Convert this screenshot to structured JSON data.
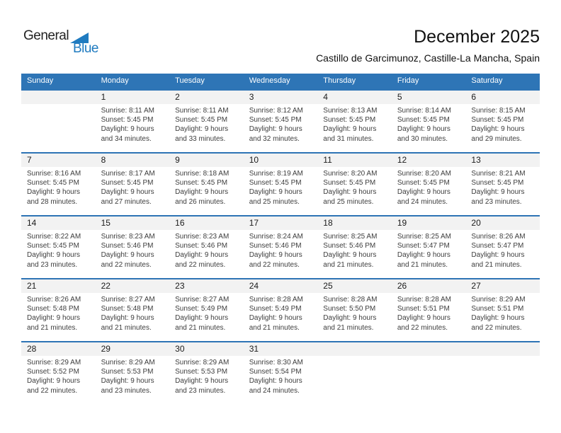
{
  "logo": {
    "part1": "General",
    "part2": "Blue"
  },
  "header": {
    "title": "December 2025",
    "subtitle": "Castillo de Garcimunoz, Castille-La Mancha, Spain"
  },
  "colors": {
    "header_blue": "#2e75b6",
    "divider_blue": "#2e74b5",
    "strip_gray": "#f2f2f2",
    "logo_blue": "#1f7bc0"
  },
  "icons": {
    "logo_flag": "blue-triangle-flag"
  },
  "calendar": {
    "day_headers": [
      "Sunday",
      "Monday",
      "Tuesday",
      "Wednesday",
      "Thursday",
      "Friday",
      "Saturday"
    ],
    "weeks": [
      {
        "days": [
          {
            "date": "",
            "lines": []
          },
          {
            "date": "1",
            "lines": [
              "Sunrise: 8:11 AM",
              "Sunset: 5:45 PM",
              "Daylight: 9 hours",
              "and 34 minutes."
            ]
          },
          {
            "date": "2",
            "lines": [
              "Sunrise: 8:11 AM",
              "Sunset: 5:45 PM",
              "Daylight: 9 hours",
              "and 33 minutes."
            ]
          },
          {
            "date": "3",
            "lines": [
              "Sunrise: 8:12 AM",
              "Sunset: 5:45 PM",
              "Daylight: 9 hours",
              "and 32 minutes."
            ]
          },
          {
            "date": "4",
            "lines": [
              "Sunrise: 8:13 AM",
              "Sunset: 5:45 PM",
              "Daylight: 9 hours",
              "and 31 minutes."
            ]
          },
          {
            "date": "5",
            "lines": [
              "Sunrise: 8:14 AM",
              "Sunset: 5:45 PM",
              "Daylight: 9 hours",
              "and 30 minutes."
            ]
          },
          {
            "date": "6",
            "lines": [
              "Sunrise: 8:15 AM",
              "Sunset: 5:45 PM",
              "Daylight: 9 hours",
              "and 29 minutes."
            ]
          }
        ]
      },
      {
        "days": [
          {
            "date": "7",
            "lines": [
              "Sunrise: 8:16 AM",
              "Sunset: 5:45 PM",
              "Daylight: 9 hours",
              "and 28 minutes."
            ]
          },
          {
            "date": "8",
            "lines": [
              "Sunrise: 8:17 AM",
              "Sunset: 5:45 PM",
              "Daylight: 9 hours",
              "and 27 minutes."
            ]
          },
          {
            "date": "9",
            "lines": [
              "Sunrise: 8:18 AM",
              "Sunset: 5:45 PM",
              "Daylight: 9 hours",
              "and 26 minutes."
            ]
          },
          {
            "date": "10",
            "lines": [
              "Sunrise: 8:19 AM",
              "Sunset: 5:45 PM",
              "Daylight: 9 hours",
              "and 25 minutes."
            ]
          },
          {
            "date": "11",
            "lines": [
              "Sunrise: 8:20 AM",
              "Sunset: 5:45 PM",
              "Daylight: 9 hours",
              "and 25 minutes."
            ]
          },
          {
            "date": "12",
            "lines": [
              "Sunrise: 8:20 AM",
              "Sunset: 5:45 PM",
              "Daylight: 9 hours",
              "and 24 minutes."
            ]
          },
          {
            "date": "13",
            "lines": [
              "Sunrise: 8:21 AM",
              "Sunset: 5:45 PM",
              "Daylight: 9 hours",
              "and 23 minutes."
            ]
          }
        ]
      },
      {
        "days": [
          {
            "date": "14",
            "lines": [
              "Sunrise: 8:22 AM",
              "Sunset: 5:45 PM",
              "Daylight: 9 hours",
              "and 23 minutes."
            ]
          },
          {
            "date": "15",
            "lines": [
              "Sunrise: 8:23 AM",
              "Sunset: 5:46 PM",
              "Daylight: 9 hours",
              "and 22 minutes."
            ]
          },
          {
            "date": "16",
            "lines": [
              "Sunrise: 8:23 AM",
              "Sunset: 5:46 PM",
              "Daylight: 9 hours",
              "and 22 minutes."
            ]
          },
          {
            "date": "17",
            "lines": [
              "Sunrise: 8:24 AM",
              "Sunset: 5:46 PM",
              "Daylight: 9 hours",
              "and 22 minutes."
            ]
          },
          {
            "date": "18",
            "lines": [
              "Sunrise: 8:25 AM",
              "Sunset: 5:46 PM",
              "Daylight: 9 hours",
              "and 21 minutes."
            ]
          },
          {
            "date": "19",
            "lines": [
              "Sunrise: 8:25 AM",
              "Sunset: 5:47 PM",
              "Daylight: 9 hours",
              "and 21 minutes."
            ]
          },
          {
            "date": "20",
            "lines": [
              "Sunrise: 8:26 AM",
              "Sunset: 5:47 PM",
              "Daylight: 9 hours",
              "and 21 minutes."
            ]
          }
        ]
      },
      {
        "days": [
          {
            "date": "21",
            "lines": [
              "Sunrise: 8:26 AM",
              "Sunset: 5:48 PM",
              "Daylight: 9 hours",
              "and 21 minutes."
            ]
          },
          {
            "date": "22",
            "lines": [
              "Sunrise: 8:27 AM",
              "Sunset: 5:48 PM",
              "Daylight: 9 hours",
              "and 21 minutes."
            ]
          },
          {
            "date": "23",
            "lines": [
              "Sunrise: 8:27 AM",
              "Sunset: 5:49 PM",
              "Daylight: 9 hours",
              "and 21 minutes."
            ]
          },
          {
            "date": "24",
            "lines": [
              "Sunrise: 8:28 AM",
              "Sunset: 5:49 PM",
              "Daylight: 9 hours",
              "and 21 minutes."
            ]
          },
          {
            "date": "25",
            "lines": [
              "Sunrise: 8:28 AM",
              "Sunset: 5:50 PM",
              "Daylight: 9 hours",
              "and 21 minutes."
            ]
          },
          {
            "date": "26",
            "lines": [
              "Sunrise: 8:28 AM",
              "Sunset: 5:51 PM",
              "Daylight: 9 hours",
              "and 22 minutes."
            ]
          },
          {
            "date": "27",
            "lines": [
              "Sunrise: 8:29 AM",
              "Sunset: 5:51 PM",
              "Daylight: 9 hours",
              "and 22 minutes."
            ]
          }
        ]
      },
      {
        "days": [
          {
            "date": "28",
            "lines": [
              "Sunrise: 8:29 AM",
              "Sunset: 5:52 PM",
              "Daylight: 9 hours",
              "and 22 minutes."
            ]
          },
          {
            "date": "29",
            "lines": [
              "Sunrise: 8:29 AM",
              "Sunset: 5:53 PM",
              "Daylight: 9 hours",
              "and 23 minutes."
            ]
          },
          {
            "date": "30",
            "lines": [
              "Sunrise: 8:29 AM",
              "Sunset: 5:53 PM",
              "Daylight: 9 hours",
              "and 23 minutes."
            ]
          },
          {
            "date": "31",
            "lines": [
              "Sunrise: 8:30 AM",
              "Sunset: 5:54 PM",
              "Daylight: 9 hours",
              "and 24 minutes."
            ]
          },
          {
            "date": "",
            "lines": []
          },
          {
            "date": "",
            "lines": []
          },
          {
            "date": "",
            "lines": []
          }
        ]
      }
    ]
  }
}
